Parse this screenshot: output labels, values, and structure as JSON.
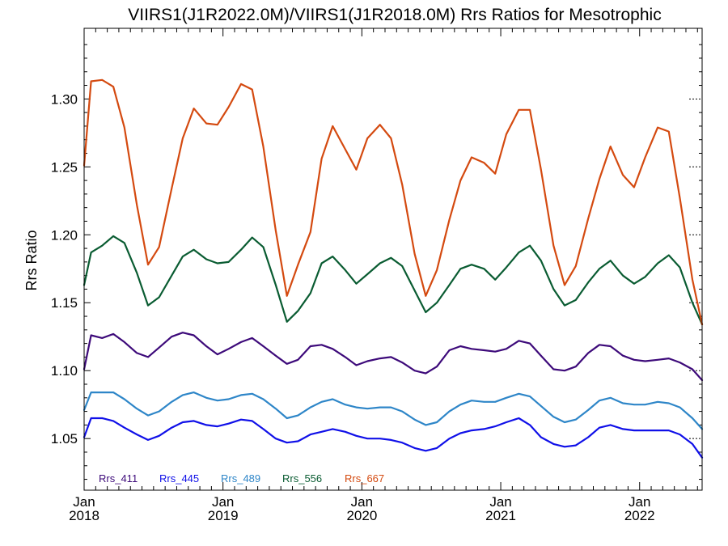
{
  "chart_data": {
    "type": "line",
    "title": "VIIRS1(J1R2022.0M)/VIIRS1(J1R2018.0M)  Rrs Ratios for Mesotrophic",
    "xlabel": "",
    "ylabel": "Rrs Ratio",
    "xlim": [
      2018.0,
      2022.45
    ],
    "ylim": [
      1.012,
      1.352
    ],
    "yticks": [
      1.05,
      1.1,
      1.15,
      1.2,
      1.25,
      1.3
    ],
    "ytick_labels": [
      "1.05",
      "1.10",
      "1.15",
      "1.20",
      "1.25",
      "1.30"
    ],
    "xtick_labels": [
      {
        "value": 2018,
        "month": "Jan",
        "year": "2018"
      },
      {
        "value": 2019,
        "month": "Jan",
        "year": "2019"
      },
      {
        "value": 2020,
        "month": "Jan",
        "year": "2020"
      },
      {
        "value": 2021,
        "month": "Jan",
        "year": "2021"
      },
      {
        "value": 2022,
        "month": "Jan",
        "year": "2022"
      }
    ],
    "legend_position": "bottom-left",
    "grid": false,
    "series": [
      {
        "name": "Rrs_411",
        "color": "#3d0a7a",
        "points": [
          [
            2018.0,
            1.101
          ],
          [
            2018.05,
            1.126
          ],
          [
            2018.13,
            1.124
          ],
          [
            2018.21,
            1.127
          ],
          [
            2018.29,
            1.121
          ],
          [
            2018.38,
            1.113
          ],
          [
            2018.46,
            1.11
          ],
          [
            2018.54,
            1.117
          ],
          [
            2018.63,
            1.125
          ],
          [
            2018.71,
            1.128
          ],
          [
            2018.79,
            1.126
          ],
          [
            2018.88,
            1.118
          ],
          [
            2018.96,
            1.112
          ],
          [
            2019.04,
            1.116
          ],
          [
            2019.13,
            1.121
          ],
          [
            2019.21,
            1.124
          ],
          [
            2019.29,
            1.118
          ],
          [
            2019.38,
            1.111
          ],
          [
            2019.46,
            1.105
          ],
          [
            2019.54,
            1.108
          ],
          [
            2019.63,
            1.118
          ],
          [
            2019.71,
            1.119
          ],
          [
            2019.79,
            1.116
          ],
          [
            2019.88,
            1.11
          ],
          [
            2019.96,
            1.104
          ],
          [
            2020.04,
            1.107
          ],
          [
            2020.13,
            1.109
          ],
          [
            2020.21,
            1.11
          ],
          [
            2020.29,
            1.106
          ],
          [
            2020.38,
            1.1
          ],
          [
            2020.46,
            1.098
          ],
          [
            2020.54,
            1.103
          ],
          [
            2020.63,
            1.115
          ],
          [
            2020.71,
            1.118
          ],
          [
            2020.79,
            1.116
          ],
          [
            2020.88,
            1.115
          ],
          [
            2020.96,
            1.114
          ],
          [
            2021.04,
            1.116
          ],
          [
            2021.13,
            1.122
          ],
          [
            2021.21,
            1.12
          ],
          [
            2021.29,
            1.111
          ],
          [
            2021.38,
            1.101
          ],
          [
            2021.46,
            1.1
          ],
          [
            2021.54,
            1.103
          ],
          [
            2021.63,
            1.113
          ],
          [
            2021.71,
            1.119
          ],
          [
            2021.79,
            1.118
          ],
          [
            2021.88,
            1.111
          ],
          [
            2021.96,
            1.108
          ],
          [
            2022.04,
            1.107
          ],
          [
            2022.13,
            1.108
          ],
          [
            2022.21,
            1.109
          ],
          [
            2022.29,
            1.106
          ],
          [
            2022.38,
            1.101
          ],
          [
            2022.45,
            1.093
          ]
        ]
      },
      {
        "name": "Rrs_445",
        "color": "#1010e8",
        "points": [
          [
            2018.0,
            1.051
          ],
          [
            2018.05,
            1.065
          ],
          [
            2018.13,
            1.065
          ],
          [
            2018.21,
            1.063
          ],
          [
            2018.29,
            1.058
          ],
          [
            2018.38,
            1.053
          ],
          [
            2018.46,
            1.049
          ],
          [
            2018.54,
            1.052
          ],
          [
            2018.63,
            1.058
          ],
          [
            2018.71,
            1.062
          ],
          [
            2018.79,
            1.063
          ],
          [
            2018.88,
            1.06
          ],
          [
            2018.96,
            1.059
          ],
          [
            2019.04,
            1.061
          ],
          [
            2019.13,
            1.064
          ],
          [
            2019.21,
            1.063
          ],
          [
            2019.29,
            1.057
          ],
          [
            2019.38,
            1.05
          ],
          [
            2019.46,
            1.047
          ],
          [
            2019.54,
            1.048
          ],
          [
            2019.63,
            1.053
          ],
          [
            2019.71,
            1.055
          ],
          [
            2019.79,
            1.057
          ],
          [
            2019.88,
            1.055
          ],
          [
            2019.96,
            1.052
          ],
          [
            2020.04,
            1.05
          ],
          [
            2020.13,
            1.05
          ],
          [
            2020.21,
            1.049
          ],
          [
            2020.29,
            1.047
          ],
          [
            2020.38,
            1.043
          ],
          [
            2020.46,
            1.041
          ],
          [
            2020.54,
            1.043
          ],
          [
            2020.63,
            1.05
          ],
          [
            2020.71,
            1.054
          ],
          [
            2020.79,
            1.056
          ],
          [
            2020.88,
            1.057
          ],
          [
            2020.96,
            1.059
          ],
          [
            2021.04,
            1.062
          ],
          [
            2021.13,
            1.065
          ],
          [
            2021.21,
            1.06
          ],
          [
            2021.29,
            1.051
          ],
          [
            2021.38,
            1.046
          ],
          [
            2021.46,
            1.044
          ],
          [
            2021.54,
            1.045
          ],
          [
            2021.63,
            1.051
          ],
          [
            2021.71,
            1.058
          ],
          [
            2021.79,
            1.06
          ],
          [
            2021.88,
            1.057
          ],
          [
            2021.96,
            1.056
          ],
          [
            2022.04,
            1.056
          ],
          [
            2022.13,
            1.056
          ],
          [
            2022.21,
            1.056
          ],
          [
            2022.29,
            1.053
          ],
          [
            2022.38,
            1.046
          ],
          [
            2022.45,
            1.036
          ]
        ]
      },
      {
        "name": "Rrs_489",
        "color": "#2e86c8",
        "points": [
          [
            2018.0,
            1.071
          ],
          [
            2018.05,
            1.084
          ],
          [
            2018.13,
            1.084
          ],
          [
            2018.21,
            1.084
          ],
          [
            2018.29,
            1.079
          ],
          [
            2018.38,
            1.072
          ],
          [
            2018.46,
            1.067
          ],
          [
            2018.54,
            1.07
          ],
          [
            2018.63,
            1.077
          ],
          [
            2018.71,
            1.082
          ],
          [
            2018.79,
            1.084
          ],
          [
            2018.88,
            1.08
          ],
          [
            2018.96,
            1.078
          ],
          [
            2019.04,
            1.079
          ],
          [
            2019.13,
            1.082
          ],
          [
            2019.21,
            1.083
          ],
          [
            2019.29,
            1.079
          ],
          [
            2019.38,
            1.072
          ],
          [
            2019.46,
            1.065
          ],
          [
            2019.54,
            1.067
          ],
          [
            2019.63,
            1.073
          ],
          [
            2019.71,
            1.077
          ],
          [
            2019.79,
            1.079
          ],
          [
            2019.88,
            1.075
          ],
          [
            2019.96,
            1.073
          ],
          [
            2020.04,
            1.072
          ],
          [
            2020.13,
            1.073
          ],
          [
            2020.21,
            1.073
          ],
          [
            2020.29,
            1.07
          ],
          [
            2020.38,
            1.064
          ],
          [
            2020.46,
            1.06
          ],
          [
            2020.54,
            1.062
          ],
          [
            2020.63,
            1.07
          ],
          [
            2020.71,
            1.075
          ],
          [
            2020.79,
            1.078
          ],
          [
            2020.88,
            1.077
          ],
          [
            2020.96,
            1.077
          ],
          [
            2021.04,
            1.08
          ],
          [
            2021.13,
            1.083
          ],
          [
            2021.21,
            1.081
          ],
          [
            2021.29,
            1.074
          ],
          [
            2021.38,
            1.066
          ],
          [
            2021.46,
            1.062
          ],
          [
            2021.54,
            1.064
          ],
          [
            2021.63,
            1.071
          ],
          [
            2021.71,
            1.078
          ],
          [
            2021.79,
            1.08
          ],
          [
            2021.88,
            1.076
          ],
          [
            2021.96,
            1.075
          ],
          [
            2022.04,
            1.075
          ],
          [
            2022.13,
            1.077
          ],
          [
            2022.21,
            1.076
          ],
          [
            2022.29,
            1.073
          ],
          [
            2022.38,
            1.065
          ],
          [
            2022.45,
            1.057
          ]
        ]
      },
      {
        "name": "Rrs_556",
        "color": "#0a5c32",
        "points": [
          [
            2018.0,
            1.163
          ],
          [
            2018.05,
            1.187
          ],
          [
            2018.13,
            1.192
          ],
          [
            2018.21,
            1.199
          ],
          [
            2018.29,
            1.194
          ],
          [
            2018.38,
            1.172
          ],
          [
            2018.46,
            1.148
          ],
          [
            2018.54,
            1.154
          ],
          [
            2018.63,
            1.17
          ],
          [
            2018.71,
            1.184
          ],
          [
            2018.79,
            1.189
          ],
          [
            2018.88,
            1.182
          ],
          [
            2018.96,
            1.179
          ],
          [
            2019.04,
            1.18
          ],
          [
            2019.13,
            1.189
          ],
          [
            2019.21,
            1.198
          ],
          [
            2019.29,
            1.191
          ],
          [
            2019.38,
            1.163
          ],
          [
            2019.46,
            1.136
          ],
          [
            2019.54,
            1.144
          ],
          [
            2019.63,
            1.157
          ],
          [
            2019.71,
            1.179
          ],
          [
            2019.79,
            1.184
          ],
          [
            2019.88,
            1.174
          ],
          [
            2019.96,
            1.164
          ],
          [
            2020.04,
            1.171
          ],
          [
            2020.13,
            1.179
          ],
          [
            2020.21,
            1.183
          ],
          [
            2020.29,
            1.177
          ],
          [
            2020.38,
            1.159
          ],
          [
            2020.46,
            1.143
          ],
          [
            2020.54,
            1.15
          ],
          [
            2020.63,
            1.163
          ],
          [
            2020.71,
            1.175
          ],
          [
            2020.79,
            1.178
          ],
          [
            2020.88,
            1.175
          ],
          [
            2020.96,
            1.167
          ],
          [
            2021.04,
            1.176
          ],
          [
            2021.13,
            1.187
          ],
          [
            2021.21,
            1.192
          ],
          [
            2021.29,
            1.181
          ],
          [
            2021.38,
            1.16
          ],
          [
            2021.46,
            1.148
          ],
          [
            2021.54,
            1.152
          ],
          [
            2021.63,
            1.165
          ],
          [
            2021.71,
            1.175
          ],
          [
            2021.79,
            1.181
          ],
          [
            2021.88,
            1.17
          ],
          [
            2021.96,
            1.164
          ],
          [
            2022.04,
            1.169
          ],
          [
            2022.13,
            1.179
          ],
          [
            2022.21,
            1.185
          ],
          [
            2022.29,
            1.176
          ],
          [
            2022.38,
            1.15
          ],
          [
            2022.45,
            1.134
          ]
        ]
      },
      {
        "name": "Rrs_667",
        "color": "#d44a10",
        "points": [
          [
            2018.0,
            1.251
          ],
          [
            2018.05,
            1.313
          ],
          [
            2018.13,
            1.314
          ],
          [
            2018.21,
            1.309
          ],
          [
            2018.29,
            1.279
          ],
          [
            2018.38,
            1.222
          ],
          [
            2018.46,
            1.178
          ],
          [
            2018.54,
            1.191
          ],
          [
            2018.63,
            1.234
          ],
          [
            2018.71,
            1.271
          ],
          [
            2018.79,
            1.293
          ],
          [
            2018.88,
            1.282
          ],
          [
            2018.96,
            1.281
          ],
          [
            2019.04,
            1.294
          ],
          [
            2019.13,
            1.311
          ],
          [
            2019.21,
            1.307
          ],
          [
            2019.29,
            1.265
          ],
          [
            2019.38,
            1.203
          ],
          [
            2019.46,
            1.155
          ],
          [
            2019.54,
            1.178
          ],
          [
            2019.63,
            1.202
          ],
          [
            2019.71,
            1.256
          ],
          [
            2019.79,
            1.28
          ],
          [
            2019.88,
            1.263
          ],
          [
            2019.96,
            1.248
          ],
          [
            2020.04,
            1.271
          ],
          [
            2020.13,
            1.281
          ],
          [
            2020.21,
            1.271
          ],
          [
            2020.29,
            1.237
          ],
          [
            2020.38,
            1.186
          ],
          [
            2020.46,
            1.155
          ],
          [
            2020.54,
            1.174
          ],
          [
            2020.63,
            1.211
          ],
          [
            2020.71,
            1.24
          ],
          [
            2020.79,
            1.257
          ],
          [
            2020.88,
            1.253
          ],
          [
            2020.96,
            1.245
          ],
          [
            2021.04,
            1.274
          ],
          [
            2021.13,
            1.292
          ],
          [
            2021.21,
            1.292
          ],
          [
            2021.29,
            1.248
          ],
          [
            2021.38,
            1.192
          ],
          [
            2021.46,
            1.163
          ],
          [
            2021.54,
            1.177
          ],
          [
            2021.63,
            1.212
          ],
          [
            2021.71,
            1.241
          ],
          [
            2021.79,
            1.265
          ],
          [
            2021.88,
            1.244
          ],
          [
            2021.96,
            1.235
          ],
          [
            2022.04,
            1.257
          ],
          [
            2022.13,
            1.279
          ],
          [
            2022.21,
            1.276
          ],
          [
            2022.29,
            1.227
          ],
          [
            2022.38,
            1.167
          ],
          [
            2022.45,
            1.134
          ]
        ]
      }
    ]
  }
}
